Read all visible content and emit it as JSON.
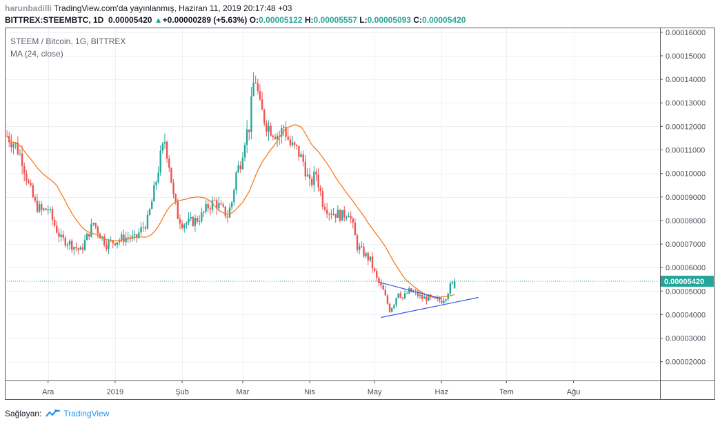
{
  "header": {
    "author": "harunbadilli",
    "published": "TradingView.com'da yayınlanmış, Haziran 11, 2019 20:17:48 +03",
    "symbol_line": {
      "ticker": "BITTREX:STEEMBTC, 1D",
      "last": "0.00005420",
      "change": "+0.00000289 (+5.63%)",
      "o_label": "O:",
      "o": "0.00005122",
      "h_label": "H:",
      "h": "0.00005557",
      "l_label": "L:",
      "l": "0.00005093",
      "c_label": "C:",
      "c": "0.00005420"
    }
  },
  "legend": {
    "symbol": "STEEM / Bitcoin, 1G, BITTREX",
    "indicator": "MA (24, close)"
  },
  "footer": {
    "provided_by": "Sağlayan:",
    "brand": "TradingView"
  },
  "colors": {
    "up": "#26a69a",
    "down": "#ef5350",
    "ma": "#f57c1f",
    "trendline": "#3f51e5",
    "last_price_line": "#26a69a"
  },
  "chart_data": {
    "type": "candlestick",
    "interval": "1D",
    "ylim": [
      1.2e-05,
      0.000162
    ],
    "y_ticks": [
      "0.00016000",
      "0.00015000",
      "0.00014000",
      "0.00013000",
      "0.00012000",
      "0.00011000",
      "0.00010000",
      "0.00009000",
      "0.00008000",
      "0.00007000",
      "0.00006000",
      "0.00005000",
      "0.00004000",
      "0.00003000",
      "0.00002000"
    ],
    "y_tick_values": [
      0.00016,
      0.00015,
      0.00014,
      0.00013,
      0.00012,
      0.00011,
      0.0001,
      9e-05,
      8e-05,
      7e-05,
      6e-05,
      5e-05,
      4e-05,
      3e-05,
      2e-05
    ],
    "last_price_label": "0.00005420",
    "last_price": 5.42e-05,
    "x_ticks": [
      {
        "label": "Ara",
        "day": 0
      },
      {
        "label": "2019",
        "day": 31
      },
      {
        "label": "Şub",
        "day": 62
      },
      {
        "label": "Mar",
        "day": 90
      },
      {
        "label": "Nis",
        "day": 121
      },
      {
        "label": "May",
        "day": 151
      },
      {
        "label": "Haz",
        "day": 182
      },
      {
        "label": "Tem",
        "day": 212
      },
      {
        "label": "Ağu",
        "day": 243
      }
    ],
    "x_range_days": [
      -20,
      283
    ],
    "close_anchors": [
      [
        -19,
        0.000116
      ],
      [
        -15,
        0.000112
      ],
      [
        -12,
        0.000106
      ],
      [
        -9,
        9.5e-05
      ],
      [
        -6,
        8.7e-05
      ],
      [
        -3,
        8.4e-05
      ],
      [
        0,
        8.5e-05
      ],
      [
        3,
        7.8e-05
      ],
      [
        6,
        7.2e-05
      ],
      [
        9,
        7.1e-05
      ],
      [
        12,
        6.9e-05
      ],
      [
        15,
        6.7e-05
      ],
      [
        18,
        7.3e-05
      ],
      [
        21,
        7.9e-05
      ],
      [
        24,
        7.4e-05
      ],
      [
        27,
        7e-05
      ],
      [
        30,
        7.1e-05
      ],
      [
        33,
        7.2e-05
      ],
      [
        37,
        7.3e-05
      ],
      [
        40,
        7.2e-05
      ],
      [
        43,
        7.6e-05
      ],
      [
        46,
        8e-05
      ],
      [
        48,
        8.8e-05
      ],
      [
        50,
        9.7e-05
      ],
      [
        52,
        0.000107
      ],
      [
        54,
        0.000114
      ],
      [
        56,
        0.000104
      ],
      [
        58,
        9e-05
      ],
      [
        60,
        8.2e-05
      ],
      [
        62,
        7.9e-05
      ],
      [
        65,
        7.9e-05
      ],
      [
        68,
        8e-05
      ],
      [
        71,
        8.2e-05
      ],
      [
        74,
        8.6e-05
      ],
      [
        77,
        8.8e-05
      ],
      [
        80,
        8.5e-05
      ],
      [
        83,
        8.2e-05
      ],
      [
        85,
        8.8e-05
      ],
      [
        87,
        0.0001
      ],
      [
        89,
        0.000105
      ],
      [
        91,
        0.000115
      ],
      [
        93,
        0.00012
      ],
      [
        95,
        0.000138
      ],
      [
        96,
        0.00014
      ],
      [
        98,
        0.000128
      ],
      [
        101,
        0.000121
      ],
      [
        104,
        0.000118
      ],
      [
        107,
        0.000116
      ],
      [
        109,
        0.00012
      ],
      [
        112,
        0.000112
      ],
      [
        115,
        0.00011
      ],
      [
        118,
        0.000105
      ],
      [
        121,
        9.5e-05
      ],
      [
        124,
        0.0001
      ],
      [
        127,
        8.8e-05
      ],
      [
        130,
        8.4e-05
      ],
      [
        133,
        8.3e-05
      ],
      [
        136,
        8.2e-05
      ],
      [
        139,
        8.4e-05
      ],
      [
        141,
        7.7e-05
      ],
      [
        143,
        6.9e-05
      ],
      [
        146,
        6.6e-05
      ],
      [
        149,
        6.3e-05
      ],
      [
        152,
        5.5e-05
      ],
      [
        155,
        5e-05
      ],
      [
        158,
        4.2e-05
      ],
      [
        160,
        4.5e-05
      ],
      [
        162,
        5e-05
      ],
      [
        164,
        4.7e-05
      ],
      [
        167,
        5e-05
      ],
      [
        170,
        4.9e-05
      ],
      [
        173,
        4.7e-05
      ],
      [
        176,
        4.7e-05
      ],
      [
        179,
        4.6e-05
      ],
      [
        182,
        4.6e-05
      ],
      [
        184,
        4.8e-05
      ],
      [
        186,
        5.2e-05
      ],
      [
        188,
        5.4e-05
      ]
    ],
    "trendlines": [
      {
        "from": [
          153,
          5.38e-05
        ],
        "to": [
          182,
          4.68e-05
        ]
      },
      {
        "from": [
          154,
          3.88e-05
        ],
        "to": [
          199,
          4.73e-05
        ]
      }
    ],
    "ma_period": 24
  }
}
